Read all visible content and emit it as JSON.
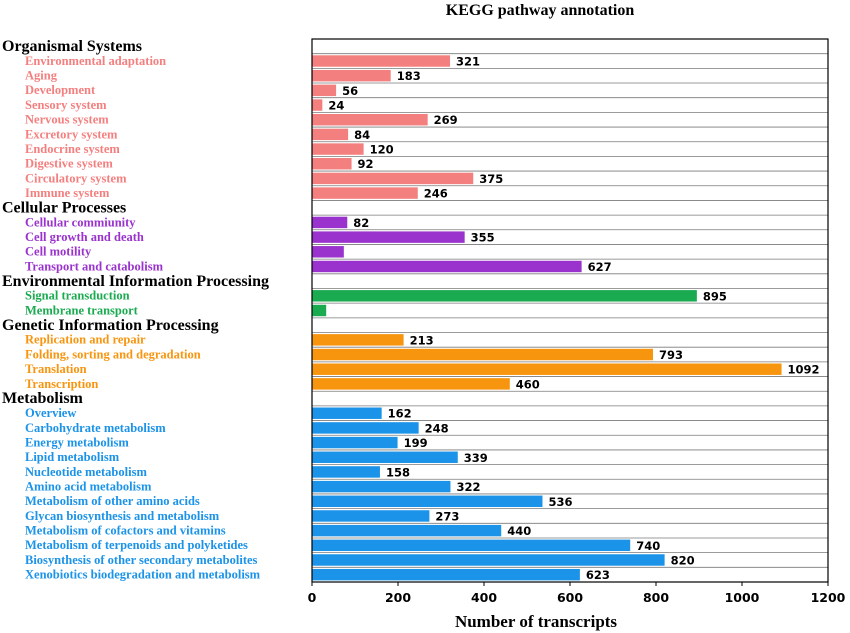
{
  "chart_data": {
    "type": "bar",
    "orientation": "horizontal",
    "title": "KEGG pathway annotation",
    "xlabel": "Number of transcripts",
    "ylabel": "",
    "xlim": [
      0,
      1200
    ],
    "xticks": [
      "0",
      "200",
      "400",
      "600",
      "800",
      "1000",
      "1200"
    ],
    "grid": "horizontal",
    "legend": "none",
    "groups": [
      {
        "name": "Organismal Systems",
        "color": "#F47F7F",
        "items": [
          {
            "label": "Environmental adaptation",
            "value": 321,
            "value_label": "321"
          },
          {
            "label": "Aging",
            "value": 183,
            "value_label": "183"
          },
          {
            "label": "Development",
            "value": 56,
            "value_label": "56"
          },
          {
            "label": "Sensory system",
            "value": 24,
            "value_label": "24"
          },
          {
            "label": "Nervous system",
            "value": 269,
            "value_label": "269"
          },
          {
            "label": "Excretory system",
            "value": 84,
            "value_label": "84"
          },
          {
            "label": "Endocrine system",
            "value": 120,
            "value_label": "120"
          },
          {
            "label": "Digestive system",
            "value": 92,
            "value_label": "92"
          },
          {
            "label": "Circulatory system",
            "value": 375,
            "value_label": "375"
          },
          {
            "label": "Immune system",
            "value": 246,
            "value_label": "246"
          }
        ]
      },
      {
        "name": "Cellular Processes",
        "color": "#9A32CD",
        "items": [
          {
            "label": "Cellular commiunity",
            "value": 82,
            "value_label": "82"
          },
          {
            "label": "Cell growth and death",
            "value": 355,
            "value_label": "355"
          },
          {
            "label": "Cell motility",
            "value": 74,
            "value_label": ""
          },
          {
            "label": "Transport and catabolism",
            "value": 627,
            "value_label": "627"
          }
        ]
      },
      {
        "name": "Environmental Information Processing",
        "color": "#1AAA50",
        "items": [
          {
            "label": "Signal transduction",
            "value": 895,
            "value_label": "895"
          },
          {
            "label": "Membrane transport",
            "value": 33,
            "value_label": ""
          }
        ]
      },
      {
        "name": "Genetic Information Processing",
        "color": "#F7950F",
        "items": [
          {
            "label": "Replication and repair",
            "value": 213,
            "value_label": "213"
          },
          {
            "label": "Folding, sorting and degradation",
            "value": 793,
            "value_label": "793"
          },
          {
            "label": "Translation",
            "value": 1092,
            "value_label": "1092"
          },
          {
            "label": "Transcription",
            "value": 460,
            "value_label": "460"
          }
        ]
      },
      {
        "name": "Metabolism",
        "color": "#1B93E8",
        "items": [
          {
            "label": "Overview",
            "value": 162,
            "value_label": "162"
          },
          {
            "label": "Carbohydrate metabolism",
            "value": 248,
            "value_label": "248"
          },
          {
            "label": "Energy metabolism",
            "value": 199,
            "value_label": "199"
          },
          {
            "label": "Lipid metabolism",
            "value": 339,
            "value_label": "339"
          },
          {
            "label": "Nucleotide metabolism",
            "value": 158,
            "value_label": "158"
          },
          {
            "label": "Amino acid metabolism",
            "value": 322,
            "value_label": "322"
          },
          {
            "label": "Metabolism of other amino acids",
            "value": 536,
            "value_label": "536"
          },
          {
            "label": "Glycan biosynthesis and metabolism",
            "value": 273,
            "value_label": "273"
          },
          {
            "label": "Metabolism of cofactors and vitamins",
            "value": 440,
            "value_label": "440"
          },
          {
            "label": "Metabolism of terpenoids and polyketides",
            "value": 740,
            "value_label": "740"
          },
          {
            "label": "Biosynthesis of other secondary metabolites",
            "value": 820,
            "value_label": "820"
          },
          {
            "label": "Xenobiotics biodegradation and metabolism",
            "value": 623,
            "value_label": "623"
          }
        ]
      }
    ]
  }
}
